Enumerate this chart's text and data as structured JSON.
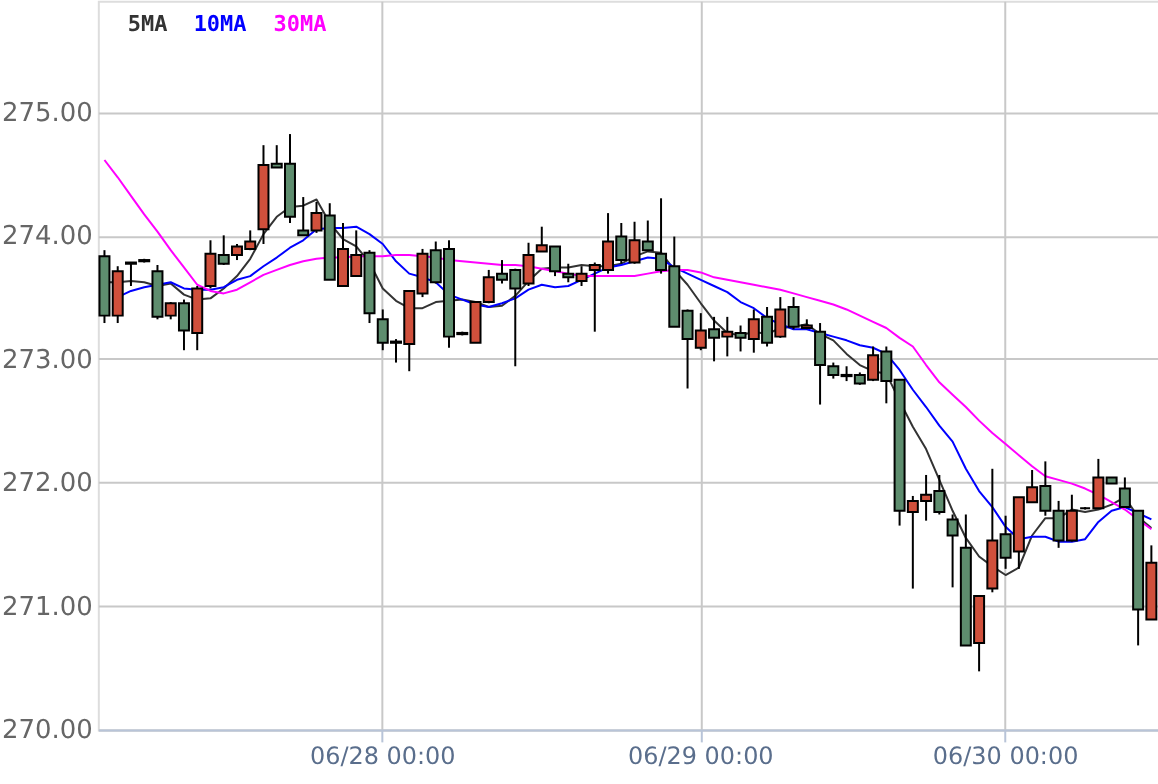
{
  "chart_data": {
    "type": "candlestick",
    "categories": [
      null,
      null,
      null,
      null,
      null,
      null,
      null,
      null,
      null,
      null,
      null,
      null,
      null,
      null,
      null,
      null,
      null,
      null,
      null,
      null,
      null,
      "06/28 00:00",
      null,
      null,
      null,
      null,
      null,
      null,
      null,
      null,
      null,
      null,
      null,
      null,
      null,
      null,
      null,
      null,
      null,
      null,
      null,
      null,
      null,
      null,
      null,
      "06/29 00:00",
      null,
      null,
      null,
      null,
      null,
      null,
      null,
      null,
      null,
      null,
      null,
      null,
      null,
      null,
      null,
      null,
      null,
      null,
      null,
      null,
      null,
      null,
      "06/30 00:00",
      null,
      null,
      null,
      null,
      null,
      null,
      null,
      null,
      null,
      null,
      null
    ],
    "ohlc": [
      [
        273.83,
        273.88,
        273.29,
        273.35
      ],
      [
        273.35,
        273.75,
        273.29,
        273.71
      ],
      [
        273.77,
        273.78,
        273.59,
        273.78
      ],
      [
        273.8,
        273.81,
        273.78,
        273.79
      ],
      [
        273.71,
        273.76,
        273.32,
        273.34
      ],
      [
        273.35,
        273.46,
        273.32,
        273.45
      ],
      [
        273.45,
        273.48,
        273.07,
        273.23
      ],
      [
        273.21,
        273.59,
        273.07,
        273.57
      ],
      [
        273.59,
        273.96,
        273.57,
        273.85
      ],
      [
        273.84,
        274.0,
        273.76,
        273.77
      ],
      [
        273.84,
        273.93,
        273.8,
        273.91
      ],
      [
        273.89,
        274.04,
        273.88,
        273.95
      ],
      [
        274.05,
        274.73,
        273.93,
        274.57
      ],
      [
        274.58,
        274.73,
        274.55,
        274.55
      ],
      [
        274.58,
        274.82,
        274.1,
        274.15
      ],
      [
        274.04,
        274.31,
        274.0,
        274.0
      ],
      [
        274.04,
        274.27,
        274.02,
        274.18
      ],
      [
        274.16,
        274.26,
        273.64,
        273.64
      ],
      [
        273.59,
        274.1,
        273.59,
        273.89
      ],
      [
        273.67,
        274.04,
        273.67,
        273.84
      ],
      [
        273.86,
        273.88,
        273.29,
        273.37
      ],
      [
        273.32,
        273.4,
        273.07,
        273.13
      ],
      [
        273.13,
        273.16,
        272.97,
        273.14
      ],
      [
        273.12,
        273.55,
        272.9,
        273.55
      ],
      [
        273.53,
        273.89,
        273.5,
        273.85
      ],
      [
        273.88,
        273.95,
        273.61,
        273.62
      ],
      [
        273.89,
        273.96,
        273.09,
        273.18
      ],
      [
        273.21,
        273.22,
        273.19,
        273.2
      ],
      [
        273.13,
        273.46,
        273.13,
        273.46
      ],
      [
        273.46,
        273.72,
        273.45,
        273.66
      ],
      [
        273.69,
        273.8,
        273.61,
        273.64
      ],
      [
        273.72,
        273.73,
        272.94,
        273.57
      ],
      [
        273.61,
        273.94,
        273.59,
        273.84
      ],
      [
        273.87,
        274.07,
        273.87,
        273.92
      ],
      [
        273.91,
        273.91,
        273.67,
        273.71
      ],
      [
        273.69,
        273.77,
        273.62,
        273.66
      ],
      [
        273.63,
        273.75,
        273.59,
        273.69
      ],
      [
        273.72,
        273.78,
        273.22,
        273.76
      ],
      [
        273.72,
        274.18,
        273.69,
        273.95
      ],
      [
        273.99,
        274.1,
        273.77,
        273.8
      ],
      [
        273.78,
        274.11,
        273.77,
        273.96
      ],
      [
        273.95,
        274.12,
        273.87,
        273.88
      ],
      [
        273.85,
        274.3,
        273.69,
        273.72
      ],
      [
        273.75,
        273.99,
        273.26,
        273.26
      ],
      [
        273.39,
        273.4,
        272.76,
        273.16
      ],
      [
        273.09,
        273.37,
        273.07,
        273.23
      ],
      [
        273.24,
        273.34,
        272.98,
        273.17
      ],
      [
        273.18,
        273.34,
        273.02,
        273.22
      ],
      [
        273.21,
        273.27,
        273.06,
        273.17
      ],
      [
        273.16,
        273.4,
        273.05,
        273.32
      ],
      [
        273.34,
        273.42,
        273.1,
        273.13
      ],
      [
        273.18,
        273.5,
        273.17,
        273.4
      ],
      [
        273.42,
        273.5,
        273.24,
        273.26
      ],
      [
        273.25,
        273.32,
        273.24,
        273.27
      ],
      [
        273.22,
        273.29,
        272.63,
        272.95
      ],
      [
        272.94,
        272.97,
        272.84,
        272.87
      ],
      [
        272.87,
        272.94,
        272.82,
        272.86
      ],
      [
        272.87,
        272.89,
        272.79,
        272.8
      ],
      [
        272.83,
        273.1,
        272.82,
        273.03
      ],
      [
        273.06,
        273.1,
        272.64,
        272.82
      ],
      [
        272.83,
        272.83,
        271.65,
        271.77
      ],
      [
        271.76,
        271.89,
        271.14,
        271.85
      ],
      [
        271.85,
        272.06,
        271.69,
        271.9
      ],
      [
        271.93,
        272.06,
        271.74,
        271.76
      ],
      [
        271.7,
        271.74,
        271.15,
        271.57
      ],
      [
        271.47,
        271.74,
        270.68,
        270.68
      ],
      [
        270.7,
        271.08,
        270.47,
        271.08
      ],
      [
        271.14,
        272.11,
        271.11,
        271.53
      ],
      [
        271.58,
        271.73,
        271.3,
        271.39
      ],
      [
        271.44,
        271.88,
        271.3,
        271.88
      ],
      [
        271.84,
        272.1,
        271.84,
        271.96
      ],
      [
        271.97,
        272.17,
        271.73,
        271.77
      ],
      [
        271.77,
        271.85,
        271.47,
        271.53
      ],
      [
        271.53,
        271.9,
        271.52,
        271.77
      ],
      [
        271.79,
        271.8,
        271.78,
        271.79
      ],
      [
        271.79,
        272.19,
        271.79,
        272.04
      ],
      [
        272.04,
        272.04,
        271.99,
        271.99
      ],
      [
        271.95,
        272.04,
        271.8,
        271.8
      ],
      [
        271.77,
        271.77,
        270.68,
        270.97
      ],
      [
        270.89,
        271.49,
        270.89,
        271.35
      ]
    ],
    "colors": [
      "#5e8d6e",
      "#d0503c",
      "#5e8d6e",
      "#5e8d6e",
      "#5e8d6e",
      "#d0503c",
      "#5e8d6e",
      "#d0503c",
      "#d0503c",
      "#5e8d6e",
      "#d0503c",
      "#d0503c",
      "#d0503c",
      "#5e8d6e",
      "#5e8d6e",
      "#5e8d6e",
      "#d0503c",
      "#5e8d6e",
      "#d0503c",
      "#d0503c",
      "#5e8d6e",
      "#5e8d6e",
      "#d0503c",
      "#d0503c",
      "#d0503c",
      "#5e8d6e",
      "#5e8d6e",
      "#5e8d6e",
      "#d0503c",
      "#d0503c",
      "#5e8d6e",
      "#5e8d6e",
      "#d0503c",
      "#d0503c",
      "#5e8d6e",
      "#5e8d6e",
      "#d0503c",
      "#d0503c",
      "#d0503c",
      "#5e8d6e",
      "#d0503c",
      "#5e8d6e",
      "#5e8d6e",
      "#5e8d6e",
      "#5e8d6e",
      "#d0503c",
      "#5e8d6e",
      "#d0503c",
      "#5e8d6e",
      "#d0503c",
      "#5e8d6e",
      "#d0503c",
      "#5e8d6e",
      "#d0503c",
      "#5e8d6e",
      "#5e8d6e",
      "#5e8d6e",
      "#5e8d6e",
      "#d0503c",
      "#5e8d6e",
      "#5e8d6e",
      "#d0503c",
      "#d0503c",
      "#5e8d6e",
      "#5e8d6e",
      "#5e8d6e",
      "#d0503c",
      "#d0503c",
      "#5e8d6e",
      "#d0503c",
      "#d0503c",
      "#5e8d6e",
      "#5e8d6e",
      "#d0503c",
      "#000000",
      "#d0503c",
      "#5e8d6e",
      "#5e8d6e",
      "#5e8d6e",
      "#d0503c"
    ],
    "series": [
      {
        "name": "5MA",
        "type": "line",
        "color": "#333333",
        "values": [
          273.62,
          273.62,
          273.63,
          273.62,
          273.59,
          273.61,
          273.52,
          273.48,
          273.49,
          273.57,
          273.67,
          273.81,
          274.01,
          274.15,
          274.23,
          274.24,
          274.29,
          274.1,
          273.97,
          273.91,
          273.78,
          273.57,
          273.47,
          273.41,
          273.41,
          273.46,
          273.47,
          273.48,
          273.46,
          273.42,
          273.43,
          273.51,
          273.63,
          273.73,
          273.74,
          273.74,
          273.76,
          273.75,
          273.75,
          273.77,
          273.83,
          273.87,
          273.86,
          273.72,
          273.6,
          273.45,
          273.31,
          273.21,
          273.19,
          273.22,
          273.2,
          273.25,
          273.26,
          273.28,
          273.2,
          273.15,
          273.04,
          272.95,
          272.9,
          272.88,
          272.66,
          272.45,
          272.27,
          272.02,
          271.77,
          271.55,
          271.4,
          271.32,
          271.25,
          271.31,
          271.57,
          271.71,
          271.71,
          271.78,
          271.76,
          271.78,
          271.82,
          271.88,
          271.72,
          271.63
        ]
      },
      {
        "name": "10MA",
        "type": "line",
        "color": "#0000ff",
        "values": [
          null,
          273.5,
          273.55,
          273.58,
          273.6,
          273.62,
          273.57,
          273.56,
          273.56,
          273.58,
          273.64,
          273.67,
          273.75,
          273.82,
          273.9,
          273.96,
          274.05,
          274.06,
          274.06,
          274.07,
          274.01,
          273.93,
          273.79,
          273.69,
          273.66,
          273.62,
          273.52,
          273.48,
          273.44,
          273.42,
          273.45,
          273.49,
          273.56,
          273.6,
          273.58,
          273.59,
          273.64,
          273.69,
          273.74,
          273.76,
          273.79,
          273.82,
          273.81,
          273.74,
          273.69,
          273.64,
          273.59,
          273.54,
          273.46,
          273.41,
          273.33,
          273.28,
          273.24,
          273.24,
          273.21,
          273.18,
          273.15,
          273.11,
          273.09,
          273.04,
          272.91,
          272.75,
          272.61,
          272.46,
          272.33,
          272.11,
          271.93,
          271.8,
          271.64,
          271.54,
          271.56,
          271.56,
          271.52,
          271.52,
          271.54,
          271.68,
          271.77,
          271.8,
          271.75,
          271.7
        ]
      },
      {
        "name": "30MA",
        "type": "line",
        "color": "#ff00ff",
        "values": [
          274.61,
          274.47,
          274.32,
          274.17,
          274.03,
          273.88,
          273.74,
          273.6,
          273.55,
          273.53,
          273.56,
          273.62,
          273.68,
          273.72,
          273.76,
          273.79,
          273.81,
          273.82,
          273.82,
          273.83,
          273.83,
          273.83,
          273.84,
          273.84,
          273.83,
          273.82,
          273.8,
          273.79,
          273.78,
          273.77,
          273.76,
          273.76,
          273.75,
          273.73,
          273.71,
          273.69,
          273.67,
          273.67,
          273.67,
          273.67,
          273.67,
          273.69,
          273.71,
          273.72,
          273.72,
          273.7,
          273.66,
          273.64,
          273.62,
          273.6,
          273.58,
          273.56,
          273.53,
          273.5,
          273.47,
          273.44,
          273.4,
          273.35,
          273.3,
          273.25,
          273.17,
          273.1,
          272.95,
          272.81,
          272.71,
          272.61,
          272.5,
          272.4,
          272.31,
          272.22,
          272.13,
          272.05,
          272.02,
          271.99,
          271.95,
          271.9,
          271.84,
          271.78,
          271.7,
          271.62
        ]
      }
    ],
    "ylim": [
      270,
      275.9
    ],
    "yticks": [
      {
        "value": 270,
        "label": "270.00"
      },
      {
        "value": 271,
        "label": "271.00"
      },
      {
        "value": 272,
        "label": "272.00"
      },
      {
        "value": 273,
        "label": "273.00"
      },
      {
        "value": 274,
        "label": "274.00"
      },
      {
        "value": 275,
        "label": "275.00"
      }
    ],
    "grid": true,
    "legend": "top left",
    "line_style": "solid",
    "marker": "none"
  }
}
